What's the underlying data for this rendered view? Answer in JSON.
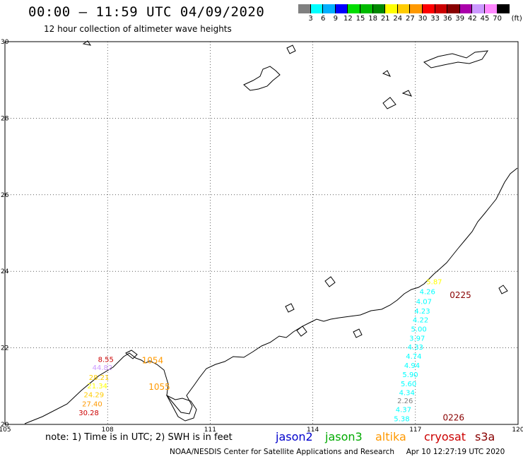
{
  "header": {
    "title": "00:00 – 11:59 UTC 04/09/2020",
    "subtitle": "12 hour collection of altimeter wave heights"
  },
  "color_scale": {
    "unit_label": "(ft)",
    "swatches": [
      {
        "color": "#808080",
        "label": "3"
      },
      {
        "color": "#00ffff",
        "label": "6"
      },
      {
        "color": "#00b0ff",
        "label": "9"
      },
      {
        "color": "#0000ff",
        "label": "12"
      },
      {
        "color": "#00dd00",
        "label": "15"
      },
      {
        "color": "#00bb00",
        "label": "18"
      },
      {
        "color": "#008800",
        "label": "21"
      },
      {
        "color": "#ffff00",
        "label": "24"
      },
      {
        "color": "#ffcc00",
        "label": "27"
      },
      {
        "color": "#ff9900",
        "label": "30"
      },
      {
        "color": "#ff0000",
        "label": "33"
      },
      {
        "color": "#cc0000",
        "label": "36"
      },
      {
        "color": "#880000",
        "label": "39"
      },
      {
        "color": "#aa00aa",
        "label": "42"
      },
      {
        "color": "#cc99ff",
        "label": "45"
      },
      {
        "color": "#ff88ff",
        "label": "70"
      },
      {
        "color": "#000000",
        "label": ""
      }
    ]
  },
  "map": {
    "lon_ticks": [
      "105",
      "108",
      "111",
      "114",
      "117",
      "120"
    ],
    "lat_ticks": [
      "30",
      "28",
      "26",
      "24",
      "22",
      "20"
    ],
    "lon_range": [
      105,
      120
    ],
    "lat_range": [
      20,
      30
    ]
  },
  "tracks": [
    {
      "label": "0225",
      "color": "#880000",
      "lon": 118.0,
      "lat": 23.3
    },
    {
      "label": "0226",
      "color": "#880000",
      "lon": 117.8,
      "lat": 20.1
    },
    {
      "label": "1054",
      "color": "#ff9900",
      "lon": 109.0,
      "lat": 21.6
    },
    {
      "label": "1055",
      "color": "#ff9900",
      "lon": 109.2,
      "lat": 20.9
    }
  ],
  "measurements": [
    {
      "value": "8.55",
      "color": "#cc0000",
      "lon": 107.95,
      "lat": 21.63
    },
    {
      "value": "44.82",
      "color": "#cc99ff",
      "lon": 107.85,
      "lat": 21.42
    },
    {
      "value": "28.21",
      "color": "#ffcc00",
      "lon": 107.75,
      "lat": 21.16
    },
    {
      "value": "21.34",
      "color": "#ffff00",
      "lon": 107.7,
      "lat": 20.94
    },
    {
      "value": "24.29",
      "color": "#ffcc00",
      "lon": 107.6,
      "lat": 20.71
    },
    {
      "value": "27.40",
      "color": "#ff9900",
      "lon": 107.55,
      "lat": 20.47
    },
    {
      "value": "30.28",
      "color": "#cc0000",
      "lon": 107.45,
      "lat": 20.24
    },
    {
      "value": "5.87",
      "color": "#ffff00",
      "lon": 117.55,
      "lat": 23.66
    },
    {
      "value": "4.26",
      "color": "#00ffff",
      "lon": 117.35,
      "lat": 23.4
    },
    {
      "value": "4.07",
      "color": "#00ffff",
      "lon": 117.25,
      "lat": 23.15
    },
    {
      "value": "4.23",
      "color": "#00ffff",
      "lon": 117.2,
      "lat": 22.9
    },
    {
      "value": "4.22",
      "color": "#00ffff",
      "lon": 117.15,
      "lat": 22.67
    },
    {
      "value": "5.00",
      "color": "#00ffff",
      "lon": 117.1,
      "lat": 22.43
    },
    {
      "value": "3.97",
      "color": "#00ffff",
      "lon": 117.05,
      "lat": 22.19
    },
    {
      "value": "4.33",
      "color": "#00ffff",
      "lon": 117.0,
      "lat": 21.96
    },
    {
      "value": "4.74",
      "color": "#00ffff",
      "lon": 116.95,
      "lat": 21.72
    },
    {
      "value": "4.94",
      "color": "#00ffff",
      "lon": 116.9,
      "lat": 21.48
    },
    {
      "value": "5.90",
      "color": "#00ffff",
      "lon": 116.85,
      "lat": 21.24
    },
    {
      "value": "5.60",
      "color": "#00ffff",
      "lon": 116.8,
      "lat": 21.0
    },
    {
      "value": "4.34",
      "color": "#00ffff",
      "lon": 116.75,
      "lat": 20.77
    },
    {
      "value": "2.26",
      "color": "#808080",
      "lon": 116.7,
      "lat": 20.55
    },
    {
      "value": "4.37",
      "color": "#00ffff",
      "lon": 116.65,
      "lat": 20.32
    },
    {
      "value": "5.38",
      "color": "#00ffff",
      "lon": 116.6,
      "lat": 20.08
    }
  ],
  "footer": {
    "note": "note: 1) Time is in UTC; 2) SWH is in feet",
    "satellites": [
      {
        "name": "jason2",
        "color": "#0000cc"
      },
      {
        "name": "jason3",
        "color": "#00aa00"
      },
      {
        "name": "altika",
        "color": "#ff9900"
      },
      {
        "name": "cryosat",
        "color": "#cc0000"
      },
      {
        "name": "s3a",
        "color": "#880000"
      }
    ],
    "credit": "NOAA/NESDIS Center for Satellite Applications and Research",
    "timestamp": "Apr 10 12:27:19 UTC 2020"
  }
}
